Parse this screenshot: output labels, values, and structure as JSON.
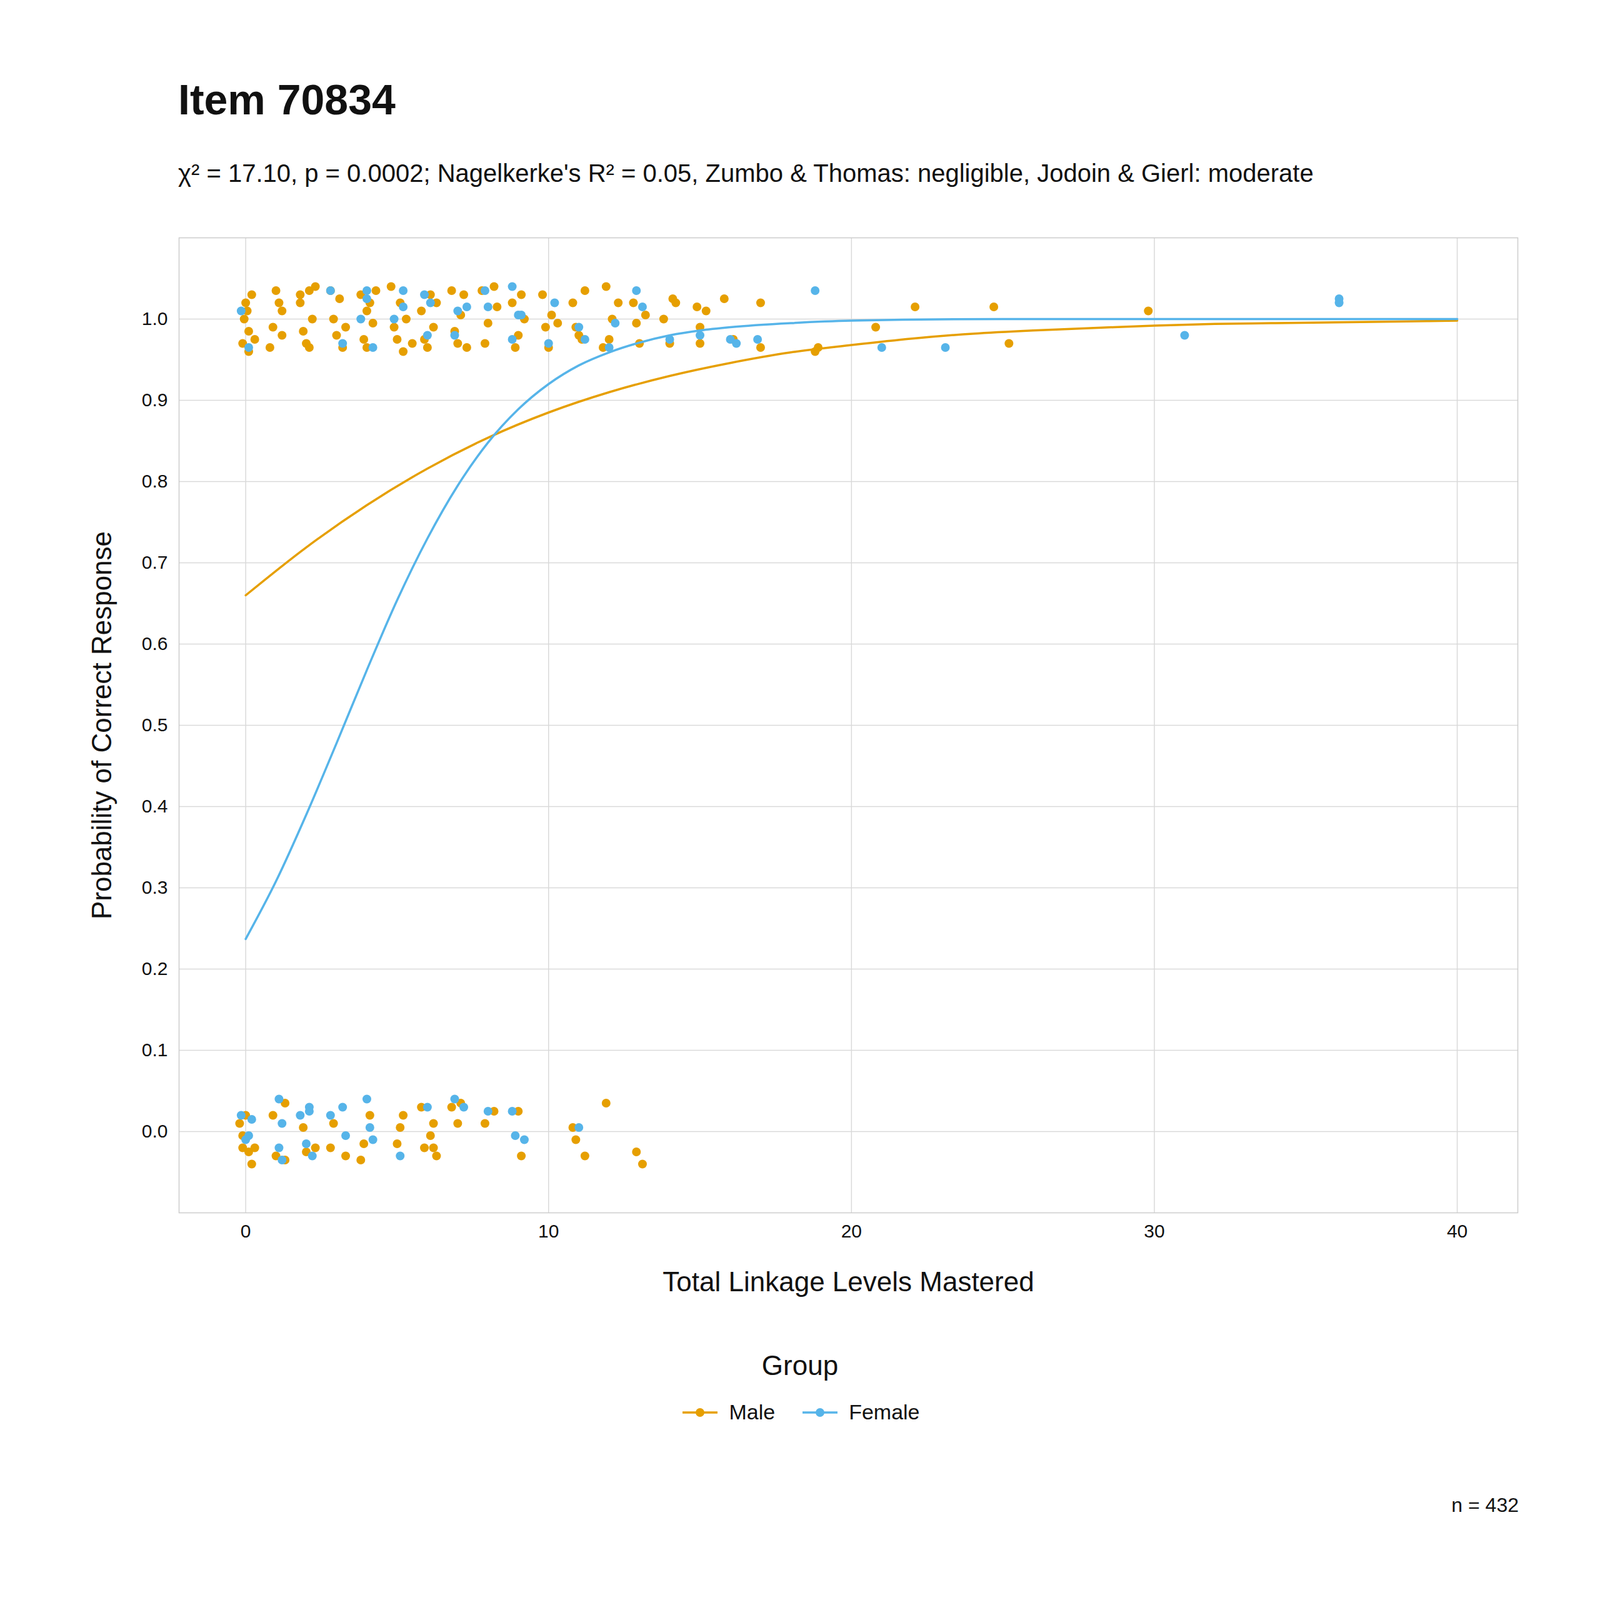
{
  "chart_data": {
    "type": "scatter",
    "title": "Item 70834",
    "subtitle": "χ² = 17.10, p = 0.0002; Nagelkerke's R² = 0.05, Zumbo & Thomas: negligible, Jodoin & Gierl: moderate",
    "x_label": "Total Linkage Levels Mastered",
    "y_label": "Probability of Correct Response",
    "legend_title": "Group",
    "caption": "n = 432",
    "legend": "bottom",
    "grid": true,
    "xlim": [
      -2.2,
      42
    ],
    "xticks": [
      0,
      10,
      20,
      30,
      40
    ],
    "ylim": [
      -0.1,
      1.1
    ],
    "yticks": [
      {
        "value": 0,
        "label": "0.0"
      },
      0.1,
      0.2,
      0.3,
      0.4,
      0.5,
      0.6,
      0.7,
      0.8,
      0.9,
      {
        "value": 1,
        "label": "1.0"
      }
    ],
    "series": [
      {
        "name": "Male",
        "color": "#E69F00",
        "marker": "circle",
        "line_style": "solid",
        "x": [
          -0.1,
          0,
          0.1,
          0.2,
          0.1,
          -0.05,
          0.3,
          0.05,
          0.8,
          1.0,
          1.1,
          1.2,
          0.9,
          1.2,
          1.8,
          2.0,
          2.1,
          2.2,
          1.9,
          2.3,
          2.1,
          1.8,
          2.8,
          3.0,
          3.2,
          2.9,
          3.1,
          3.3,
          3.8,
          4.0,
          4.2,
          3.9,
          4.1,
          4.3,
          4.0,
          4.8,
          5.0,
          5.1,
          5.2,
          4.9,
          5.3,
          5.5,
          5.8,
          6.0,
          6.1,
          6.2,
          6.3,
          5.9,
          6.8,
          7.0,
          7.1,
          7.2,
          6.9,
          7.3,
          7.8,
          8.0,
          8.2,
          7.9,
          8.3,
          8.8,
          9.0,
          9.2,
          8.9,
          9.1,
          9.8,
          10.0,
          10.1,
          9.9,
          10.3,
          10.8,
          11.0,
          11.2,
          10.9,
          11.1,
          11.9,
          12.0,
          12.1,
          12.3,
          11.8,
          12.8,
          13.0,
          13.2,
          12.9,
          13.8,
          14.1,
          14.0,
          14.2,
          14.9,
          15.0,
          15.2,
          15.0,
          15.8,
          16.1,
          17.0,
          17.0,
          18.8,
          18.9,
          20.8,
          22.1,
          24.7,
          25.2,
          29.8,
          -0.2,
          -0.1,
          0.0,
          0.1,
          0.2,
          0.3,
          -0.1,
          0.9,
          1.0,
          1.3,
          1.3,
          1.9,
          2.0,
          2.3,
          2.8,
          2.9,
          3.3,
          3.8,
          3.9,
          4.1,
          5.0,
          5.1,
          5.2,
          5.8,
          5.9,
          6.1,
          6.2,
          6.3,
          6.2,
          6.8,
          7.0,
          7.1,
          7.9,
          8.2,
          9.0,
          9.1,
          10.8,
          10.9,
          11.2,
          11.9,
          12.9,
          13.1
        ],
        "values": [
          0.97,
          1.02,
          0.985,
          1.03,
          0.96,
          1.0,
          0.975,
          1.01,
          0.965,
          1.035,
          1.02,
          0.98,
          0.99,
          1.01,
          1.03,
          0.97,
          1.035,
          1.0,
          0.985,
          1.04,
          0.965,
          1.02,
          1.035,
          0.98,
          0.965,
          1.0,
          1.025,
          0.99,
          1.03,
          1.01,
          0.995,
          0.975,
          1.02,
          1.035,
          0.965,
          1.04,
          0.975,
          1.02,
          0.96,
          0.99,
          1.0,
          0.97,
          1.01,
          0.965,
          1.03,
          0.99,
          1.02,
          0.975,
          1.035,
          0.97,
          1.005,
          1.03,
          0.985,
          0.965,
          1.035,
          0.995,
          1.04,
          0.97,
          1.015,
          1.02,
          0.98,
          1.0,
          0.965,
          1.03,
          1.03,
          0.965,
          1.005,
          0.99,
          0.995,
          1.02,
          0.98,
          1.035,
          0.99,
          0.975,
          1.04,
          0.975,
          1.0,
          1.02,
          0.965,
          1.02,
          0.97,
          1.005,
          0.995,
          1.0,
          1.025,
          0.97,
          1.02,
          1.015,
          0.97,
          1.01,
          0.99,
          1.025,
          0.975,
          1.02,
          0.965,
          0.96,
          0.965,
          0.99,
          1.015,
          1.015,
          0.97,
          1.01,
          0.01,
          -0.02,
          0.02,
          -0.025,
          -0.04,
          -0.02,
          -0.005,
          0.02,
          -0.03,
          -0.035,
          0.035,
          0.005,
          -0.025,
          -0.02,
          -0.02,
          0.01,
          -0.03,
          -0.035,
          -0.015,
          0.02,
          -0.015,
          0.005,
          0.02,
          0.03,
          -0.02,
          -0.005,
          0.01,
          -0.03,
          -0.02,
          0.03,
          0.01,
          0.035,
          0.01,
          0.025,
          0.025,
          -0.03,
          0.005,
          -0.01,
          -0.03,
          0.035,
          -0.025,
          -0.04
        ],
        "curve": {
          "x": [
            0,
            2,
            4,
            6,
            8,
            10,
            12,
            14,
            16,
            18,
            20,
            22,
            24,
            26,
            28,
            30,
            32,
            34,
            36,
            38,
            40
          ],
          "values": [
            0.66,
            0.719,
            0.771,
            0.816,
            0.854,
            0.885,
            0.91,
            0.93,
            0.946,
            0.959,
            0.968,
            0.976,
            0.982,
            0.986,
            0.989,
            0.992,
            0.994,
            0.995,
            0.996,
            0.997,
            0.998
          ]
        }
      },
      {
        "name": "Female",
        "color": "#56B4E9",
        "marker": "circle",
        "line_style": "solid",
        "x": [
          -0.15,
          0.1,
          2.8,
          3.2,
          3.8,
          4.0,
          4.2,
          4.0,
          4.9,
          5.2,
          5.2,
          5.9,
          6.0,
          6.1,
          6.9,
          7.0,
          7.3,
          7.9,
          8.0,
          8.8,
          8.8,
          9.0,
          9.1,
          10.0,
          10.2,
          11.0,
          11.2,
          12.0,
          12.2,
          12.9,
          13.1,
          14.0,
          15.0,
          16.0,
          16.2,
          16.9,
          18.8,
          21.0,
          23.1,
          31.0,
          36.1,
          36.1,
          -0.15,
          0.0,
          0.2,
          0.1,
          1.1,
          1.2,
          1.2,
          1.1,
          1.8,
          2.0,
          2.1,
          2.2,
          2.1,
          2.8,
          3.2,
          3.3,
          4.0,
          4.1,
          4.2,
          5.1,
          6.0,
          6.9,
          7.2,
          8.0,
          8.8,
          8.9,
          9.2,
          11.0
        ],
        "values": [
          1.01,
          0.965,
          1.035,
          0.97,
          1.0,
          1.035,
          0.965,
          1.025,
          1.0,
          1.035,
          1.015,
          1.03,
          0.98,
          1.02,
          0.98,
          1.01,
          1.015,
          1.035,
          1.015,
          1.04,
          0.975,
          1.005,
          1.005,
          0.97,
          1.02,
          0.99,
          0.975,
          0.965,
          0.995,
          1.035,
          1.015,
          0.975,
          0.98,
          0.975,
          0.97,
          0.975,
          1.035,
          0.965,
          0.965,
          0.98,
          1.025,
          1.02,
          0.02,
          -0.01,
          0.015,
          -0.005,
          0.04,
          -0.035,
          0.01,
          -0.02,
          0.02,
          -0.015,
          0.03,
          -0.03,
          0.025,
          0.02,
          0.03,
          -0.005,
          0.04,
          0.005,
          -0.01,
          -0.03,
          0.03,
          0.04,
          0.03,
          0.025,
          0.025,
          -0.005,
          -0.01,
          0.005
        ],
        "curve": {
          "x": [
            0,
            1,
            2,
            3,
            4,
            5,
            6,
            7,
            8,
            9,
            10,
            11,
            12,
            13,
            14,
            15,
            16,
            18,
            20,
            25,
            30,
            40
          ],
          "values": [
            0.237,
            0.308,
            0.39,
            0.478,
            0.568,
            0.654,
            0.73,
            0.795,
            0.848,
            0.889,
            0.92,
            0.943,
            0.959,
            0.971,
            0.98,
            0.986,
            0.99,
            0.995,
            0.998,
            1.0,
            1.0,
            1.0
          ]
        }
      }
    ]
  }
}
